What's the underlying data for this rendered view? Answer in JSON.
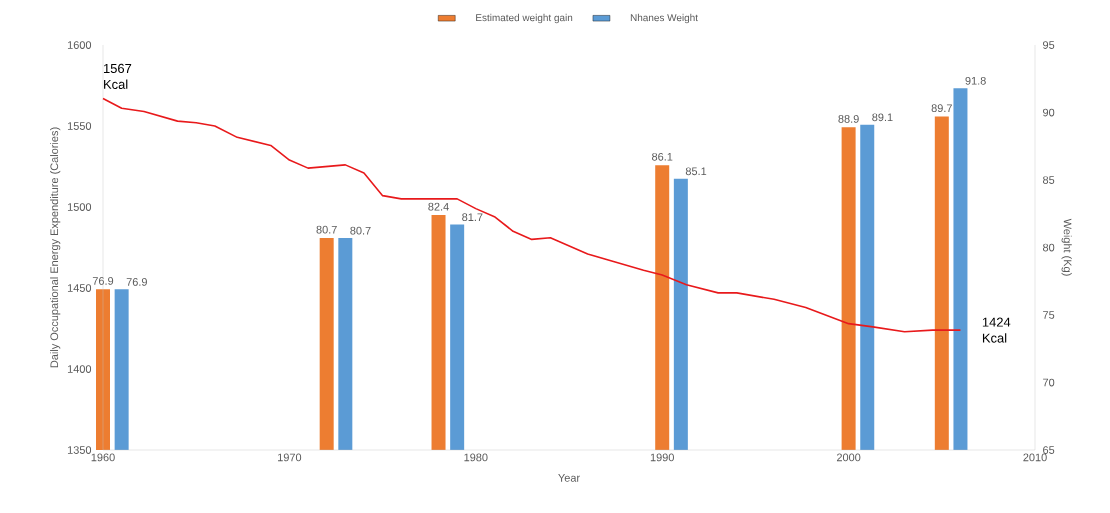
{
  "chart_data": {
    "type": "bar",
    "xlabel": "Year",
    "ylabel": "Daily Occupational Energy Expenditure (Calories)",
    "y2label": "Weight (Kg)",
    "xlim": [
      1960,
      2010
    ],
    "xticks": [
      1960,
      1970,
      1980,
      1990,
      2000,
      2010
    ],
    "ylim": [
      1350,
      1600
    ],
    "yticks": [
      1350,
      1400,
      1450,
      1500,
      1550,
      1600
    ],
    "y2lim": [
      65,
      95
    ],
    "y2ticks": [
      65,
      70,
      75,
      80,
      85,
      90,
      95
    ],
    "legend": "top",
    "series": [
      {
        "name": "Estimated weight gain",
        "axis": "y2",
        "color": "#ed7d31",
        "x": [
          1960,
          1972,
          1978,
          1990,
          2000,
          2005
        ],
        "values": [
          76.9,
          80.7,
          82.4,
          86.1,
          88.9,
          89.7
        ],
        "value_labels": [
          "76.9",
          "80.7",
          "82.4",
          "86.1",
          "88.9",
          "89.7"
        ]
      },
      {
        "name": "Nhanes Weight",
        "axis": "y2",
        "color": "#5b9bd5",
        "x": [
          1961,
          1973,
          1979,
          1991,
          2001,
          2006
        ],
        "values": [
          76.9,
          80.7,
          81.7,
          85.1,
          89.1,
          91.8
        ],
        "value_labels": [
          "76.9",
          "80.7",
          "81.7",
          "85.1",
          "89.1",
          "91.8"
        ]
      },
      {
        "type": "line",
        "axis": "y",
        "color": "#e8191b",
        "x": [
          1960,
          1961,
          1962.2,
          1964,
          1965,
          1966,
          1967.2,
          1969,
          1970,
          1971,
          1973,
          1974,
          1975,
          1976,
          1979,
          1980,
          1981,
          1982,
          1983,
          1984,
          1986,
          1987.2,
          1989,
          1990,
          1991.3,
          1993,
          1994,
          1996,
          1997.7,
          2000,
          2001.3,
          2003,
          2004.5,
          2006
        ],
        "values": [
          1567,
          1561,
          1559,
          1553,
          1552,
          1550,
          1543,
          1538,
          1529,
          1524,
          1526,
          1521,
          1507,
          1505,
          1505,
          1499,
          1494,
          1485,
          1480,
          1481,
          1471,
          1467,
          1461,
          1458,
          1452,
          1447,
          1447,
          1443,
          1438,
          1428,
          1426,
          1423,
          1424,
          1424
        ]
      }
    ],
    "annotations": [
      {
        "text": "1567 Kcal",
        "x": 1960,
        "y": 1567
      },
      {
        "text": "1424 Kcal",
        "x": 2006,
        "y": 1424
      }
    ]
  }
}
